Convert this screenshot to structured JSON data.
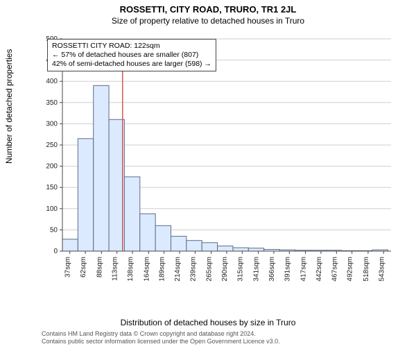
{
  "title": "ROSSETTI, CITY ROAD, TRURO, TR1 2JL",
  "subtitle": "Size of property relative to detached houses in Truro",
  "ylabel": "Number of detached properties",
  "xlabel": "Distribution of detached houses by size in Truro",
  "footnote_line1": "Contains HM Land Registry data © Crown copyright and database right 2024.",
  "footnote_line2": "Contains public sector information licensed under the Open Government Licence v3.0.",
  "info_box": {
    "line1": "ROSSETTI CITY ROAD: 122sqm",
    "line2": "← 57% of detached houses are smaller (807)",
    "line3": "42% of semi-detached houses are larger (598) →"
  },
  "chart": {
    "type": "histogram",
    "background_color": "#ffffff",
    "grid_color": "#cfcfcf",
    "axis_color": "#444444",
    "bar_fill": "#dbeafe",
    "bar_stroke": "#5b6b8a",
    "marker_line_color": "#d9534f",
    "marker_x": 122,
    "x_min": 25,
    "x_max": 555,
    "y_min": 0,
    "y_max": 500,
    "y_tick_step": 50,
    "x_ticks": [
      37,
      62,
      88,
      113,
      138,
      164,
      189,
      214,
      239,
      265,
      290,
      315,
      341,
      366,
      391,
      417,
      442,
      467,
      492,
      518,
      543
    ],
    "x_tick_suffix": "sqm",
    "font_size_tick": 10,
    "font_size_label": 12,
    "bars": [
      {
        "x0": 25,
        "x1": 50,
        "y": 28
      },
      {
        "x0": 50,
        "x1": 75,
        "y": 265
      },
      {
        "x0": 75,
        "x1": 100,
        "y": 390
      },
      {
        "x0": 100,
        "x1": 125,
        "y": 310
      },
      {
        "x0": 125,
        "x1": 150,
        "y": 175
      },
      {
        "x0": 150,
        "x1": 175,
        "y": 88
      },
      {
        "x0": 175,
        "x1": 200,
        "y": 60
      },
      {
        "x0": 200,
        "x1": 225,
        "y": 35
      },
      {
        "x0": 225,
        "x1": 250,
        "y": 25
      },
      {
        "x0": 250,
        "x1": 275,
        "y": 20
      },
      {
        "x0": 275,
        "x1": 300,
        "y": 12
      },
      {
        "x0": 300,
        "x1": 325,
        "y": 8
      },
      {
        "x0": 325,
        "x1": 350,
        "y": 7
      },
      {
        "x0": 350,
        "x1": 375,
        "y": 4
      },
      {
        "x0": 375,
        "x1": 400,
        "y": 3
      },
      {
        "x0": 400,
        "x1": 425,
        "y": 2
      },
      {
        "x0": 425,
        "x1": 450,
        "y": 2
      },
      {
        "x0": 450,
        "x1": 475,
        "y": 2
      },
      {
        "x0": 475,
        "x1": 500,
        "y": 1
      },
      {
        "x0": 500,
        "x1": 525,
        "y": 1
      },
      {
        "x0": 525,
        "x1": 550,
        "y": 3
      }
    ]
  }
}
